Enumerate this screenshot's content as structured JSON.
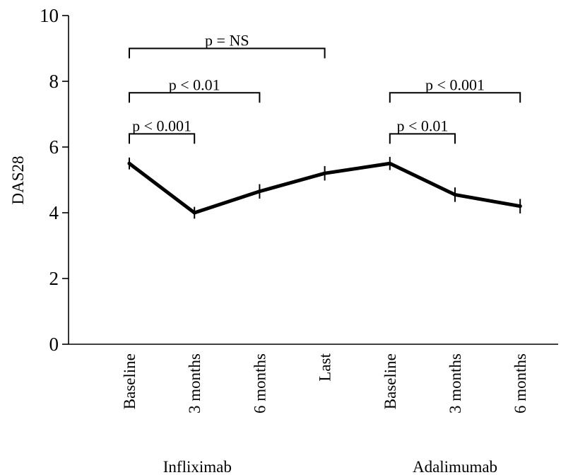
{
  "chart_data": {
    "type": "line",
    "ylabel": "DAS28",
    "ylim": [
      0,
      10
    ],
    "yticks": [
      "0",
      "2",
      "4",
      "6",
      "8",
      "10"
    ],
    "categories": [
      "Baseline",
      "3  months",
      "6 months",
      "Last",
      "Baseline",
      "3 months",
      "6 months"
    ],
    "groups": [
      {
        "label": "Infliximab",
        "from": 0,
        "to": 3
      },
      {
        "label": "Adalimumab",
        "from": 4,
        "to": 6
      }
    ],
    "series": [
      {
        "values": [
          5.5,
          4.0,
          4.65,
          5.2,
          5.5,
          4.55,
          4.2
        ],
        "errors": [
          0.18,
          0.18,
          0.22,
          0.22,
          0.2,
          0.22,
          0.22
        ]
      }
    ],
    "annotations": [
      {
        "label": "p = NS",
        "from": 0,
        "to": 3,
        "level": 9.0
      },
      {
        "label": "p < 0.01",
        "from": 0,
        "to": 2,
        "level": 7.65
      },
      {
        "label": "p < 0.001",
        "from": 0,
        "to": 1,
        "level": 6.4
      },
      {
        "label": "p < 0.001",
        "from": 4,
        "to": 6,
        "level": 7.65
      },
      {
        "label": "p < 0.01",
        "from": 4,
        "to": 5,
        "level": 6.4
      }
    ]
  }
}
